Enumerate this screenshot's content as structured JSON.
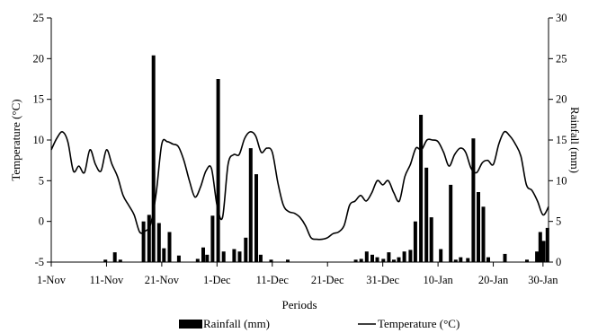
{
  "chart_data": {
    "type": "bar",
    "xlabel": "Periods",
    "y_left_label": "Temperature (°C)",
    "y_right_label": "Rainfall (mm)",
    "y_left_lim": [
      -5,
      25
    ],
    "y_left_ticks": [
      "-5",
      "0",
      "5",
      "10",
      "15",
      "20",
      "25"
    ],
    "y_right_lim": [
      0,
      30
    ],
    "y_right_ticks": [
      "0",
      "5",
      "10",
      "15",
      "20",
      "25",
      "30"
    ],
    "x_start_day": 1,
    "x_end_day": 91,
    "x_ticks": [
      {
        "label": "1-Nov",
        "day": 1
      },
      {
        "label": "11-Nov",
        "day": 11
      },
      {
        "label": "21-Nov",
        "day": 21
      },
      {
        "label": "1-Dec",
        "day": 31
      },
      {
        "label": "11-Dec",
        "day": 41
      },
      {
        "label": "21-Dec",
        "day": 51
      },
      {
        "label": "31-Dec",
        "day": 61
      },
      {
        "label": "10-Jan",
        "day": 71
      },
      {
        "label": "20-Jan",
        "day": 81
      },
      {
        "label": "30-Jan",
        "day": 90
      }
    ],
    "grid": false,
    "legend_position": "bottom",
    "series": [
      {
        "name": "Rainfall (mm)",
        "type": "bar",
        "axis": "right",
        "points": [
          [
            10.8,
            0.3
          ],
          [
            12.5,
            1.2
          ],
          [
            13.5,
            0.3
          ],
          [
            17.7,
            5.0
          ],
          [
            18.7,
            5.8
          ],
          [
            19.5,
            25.4
          ],
          [
            20.5,
            4.8
          ],
          [
            21.4,
            1.7
          ],
          [
            22.4,
            3.7
          ],
          [
            24.1,
            0.8
          ],
          [
            27.5,
            0.4
          ],
          [
            28.5,
            1.8
          ],
          [
            29.2,
            0.9
          ],
          [
            30.2,
            5.7
          ],
          [
            31.2,
            22.5
          ],
          [
            32.2,
            1.3
          ],
          [
            34.1,
            1.6
          ],
          [
            35.1,
            1.3
          ],
          [
            36.2,
            3.0
          ],
          [
            37.1,
            14.0
          ],
          [
            38.1,
            10.8
          ],
          [
            38.9,
            0.9
          ],
          [
            40.8,
            0.3
          ],
          [
            43.8,
            0.3
          ],
          [
            56.1,
            0.3
          ],
          [
            57.1,
            0.4
          ],
          [
            58.1,
            1.3
          ],
          [
            59.1,
            0.9
          ],
          [
            60.0,
            0.6
          ],
          [
            61.1,
            0.4
          ],
          [
            62.1,
            1.2
          ],
          [
            63.0,
            0.3
          ],
          [
            63.9,
            0.6
          ],
          [
            64.9,
            1.3
          ],
          [
            66.0,
            1.5
          ],
          [
            66.9,
            5.0
          ],
          [
            67.9,
            18.1
          ],
          [
            68.9,
            11.6
          ],
          [
            69.8,
            5.5
          ],
          [
            71.5,
            1.6
          ],
          [
            73.3,
            9.5
          ],
          [
            74.2,
            0.3
          ],
          [
            75.1,
            0.6
          ],
          [
            76.4,
            0.5
          ],
          [
            77.4,
            15.2
          ],
          [
            78.3,
            8.6
          ],
          [
            79.2,
            6.8
          ],
          [
            80.1,
            0.6
          ],
          [
            83.1,
            1.0
          ],
          [
            87.1,
            0.3
          ],
          [
            88.9,
            1.3
          ],
          [
            89.5,
            3.7
          ],
          [
            90.1,
            2.6
          ],
          [
            90.8,
            4.2
          ]
        ]
      },
      {
        "name": "Temperature (°C)",
        "type": "line",
        "axis": "left",
        "points": [
          [
            1,
            8.8
          ],
          [
            2,
            10.2
          ],
          [
            3,
            11.0
          ],
          [
            4,
            9.8
          ],
          [
            5,
            6.2
          ],
          [
            6,
            6.8
          ],
          [
            7,
            6.0
          ],
          [
            8,
            8.8
          ],
          [
            9,
            7.0
          ],
          [
            10,
            6.2
          ],
          [
            11,
            8.8
          ],
          [
            12,
            7.0
          ],
          [
            13,
            5.5
          ],
          [
            14,
            3.2
          ],
          [
            15,
            2.0
          ],
          [
            16,
            0.8
          ],
          [
            17,
            -1.3
          ],
          [
            18,
            -1.2
          ],
          [
            19,
            -0.3
          ],
          [
            20,
            3.5
          ],
          [
            21,
            9.5
          ],
          [
            22,
            9.8
          ],
          [
            23,
            9.5
          ],
          [
            24,
            9.2
          ],
          [
            25,
            7.5
          ],
          [
            26,
            5.0
          ],
          [
            27,
            3.0
          ],
          [
            28,
            4.2
          ],
          [
            29,
            6.2
          ],
          [
            30,
            6.5
          ],
          [
            31,
            2.0
          ],
          [
            32,
            0.5
          ],
          [
            33,
            7.0
          ],
          [
            34,
            8.2
          ],
          [
            35,
            8.2
          ],
          [
            36,
            10.2
          ],
          [
            37,
            11.0
          ],
          [
            38,
            10.5
          ],
          [
            39,
            8.5
          ],
          [
            40,
            9.0
          ],
          [
            41,
            8.5
          ],
          [
            42,
            4.8
          ],
          [
            43,
            2.0
          ],
          [
            44,
            1.2
          ],
          [
            45,
            1.0
          ],
          [
            46,
            0.5
          ],
          [
            47,
            -0.5
          ],
          [
            48,
            -2.0
          ],
          [
            49,
            -2.2
          ],
          [
            50,
            -2.2
          ],
          [
            51,
            -2.0
          ],
          [
            52,
            -1.5
          ],
          [
            53,
            -1.3
          ],
          [
            54,
            -0.5
          ],
          [
            55,
            2.0
          ],
          [
            56,
            2.5
          ],
          [
            57,
            3.2
          ],
          [
            58,
            2.5
          ],
          [
            59,
            3.5
          ],
          [
            60,
            5.0
          ],
          [
            61,
            4.5
          ],
          [
            62,
            5.0
          ],
          [
            63,
            3.5
          ],
          [
            64,
            2.5
          ],
          [
            65,
            5.5
          ],
          [
            66,
            7.0
          ],
          [
            67,
            9.0
          ],
          [
            68,
            8.8
          ],
          [
            69,
            10.0
          ],
          [
            70,
            10.0
          ],
          [
            71,
            9.8
          ],
          [
            72,
            8.5
          ],
          [
            73,
            6.8
          ],
          [
            74,
            8.2
          ],
          [
            75,
            9.0
          ],
          [
            76,
            8.5
          ],
          [
            77,
            6.5
          ],
          [
            78,
            6.0
          ],
          [
            79,
            7.2
          ],
          [
            80,
            7.5
          ],
          [
            81,
            7.0
          ],
          [
            82,
            9.5
          ],
          [
            83,
            11.0
          ],
          [
            84,
            10.5
          ],
          [
            85,
            9.5
          ],
          [
            86,
            8.0
          ],
          [
            87,
            4.5
          ],
          [
            88,
            3.8
          ],
          [
            89,
            2.5
          ],
          [
            90,
            0.8
          ],
          [
            91,
            1.8
          ]
        ]
      }
    ]
  }
}
